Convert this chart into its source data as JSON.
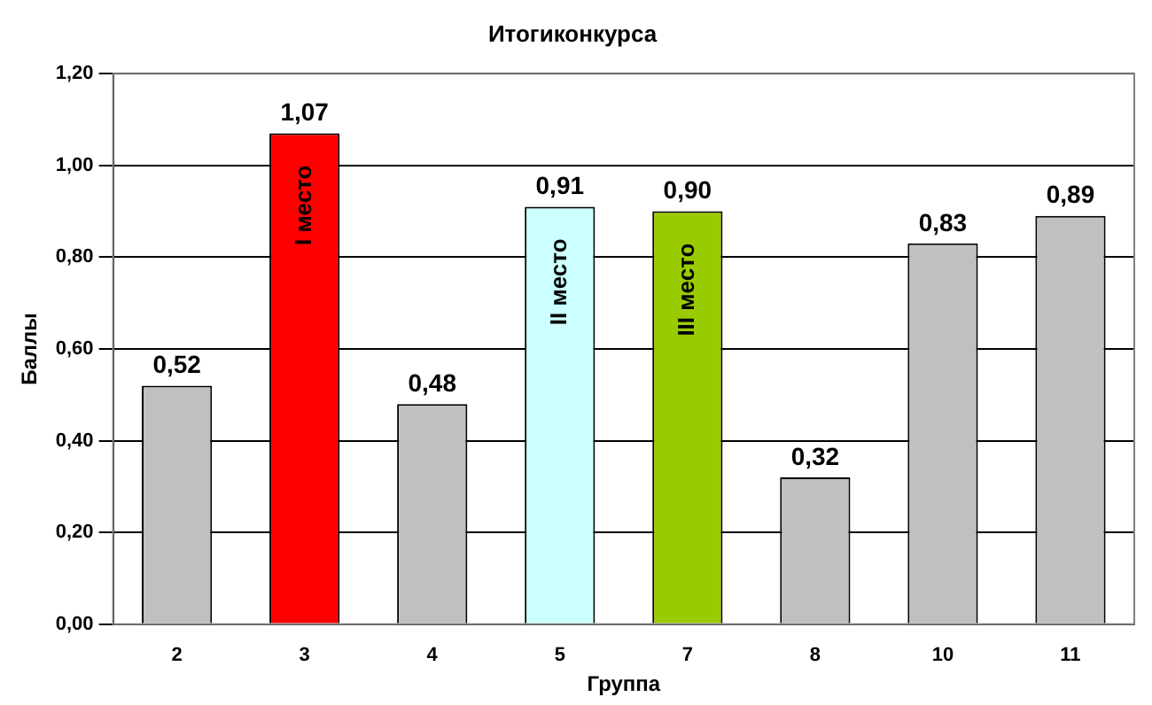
{
  "chart_data": {
    "type": "bar",
    "title": "Итогиконкурса",
    "xlabel": "Группа",
    "ylabel": "Баллы",
    "categories": [
      "2",
      "3",
      "4",
      "5",
      "7",
      "8",
      "10",
      "11"
    ],
    "values": [
      0.52,
      1.07,
      0.48,
      0.91,
      0.9,
      0.32,
      0.83,
      0.89
    ],
    "colors": [
      "#c0c0c0",
      "#ff0000",
      "#c0c0c0",
      "#ccffff",
      "#99cc00",
      "#c0c0c0",
      "#c0c0c0",
      "#c0c0c0"
    ],
    "value_labels": [
      "0,52",
      "1,07",
      "0,48",
      "0,91",
      "0,90",
      "0,32",
      "0,83",
      "0,89"
    ],
    "ylim": [
      0,
      1.2
    ],
    "yticks": [
      {
        "value": 0,
        "label": "0,00"
      },
      {
        "value": 0.2,
        "label": "0,20"
      },
      {
        "value": 0.4,
        "label": "0,40"
      },
      {
        "value": 0.6,
        "label": "0,60"
      },
      {
        "value": 0.8,
        "label": "0,80"
      },
      {
        "value": 1,
        "label": "1,00"
      },
      {
        "value": 1.2,
        "label": "1,20"
      }
    ],
    "grid": "y",
    "legend": false,
    "annotations": [
      "I место",
      "II место",
      "III место"
    ]
  }
}
